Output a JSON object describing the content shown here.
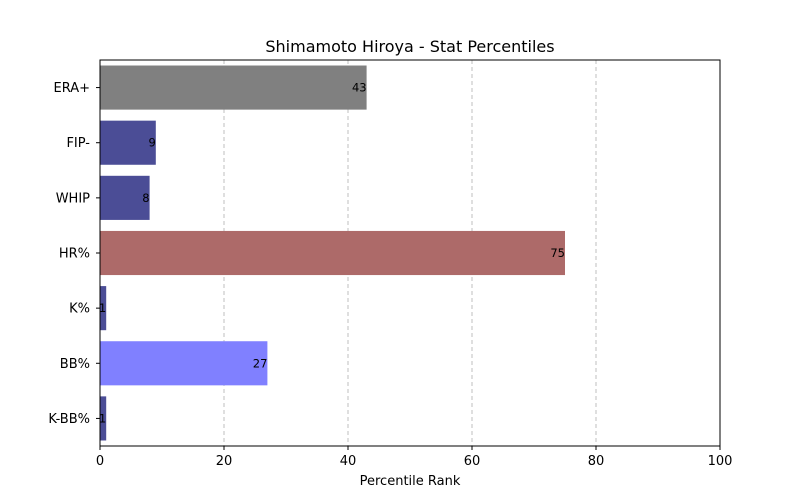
{
  "chart_data": {
    "type": "bar",
    "orientation": "horizontal",
    "title": "Shimamoto Hiroya - Stat Percentiles",
    "xlabel": "Percentile Rank",
    "ylabel": "",
    "xlim": [
      0,
      100
    ],
    "xticks": [
      0,
      20,
      40,
      60,
      80,
      100
    ],
    "grid": "x-dashed",
    "categories": [
      "ERA+",
      "FIP-",
      "WHIP",
      "HR%",
      "K%",
      "BB%",
      "K-BB%"
    ],
    "values": [
      43,
      9,
      8,
      75,
      1,
      27,
      1
    ],
    "colors": [
      "#808080",
      "#4b4d96",
      "#4b4d96",
      "#ad6a69",
      "#4b4d96",
      "#8080ff",
      "#4b4d96"
    ]
  }
}
